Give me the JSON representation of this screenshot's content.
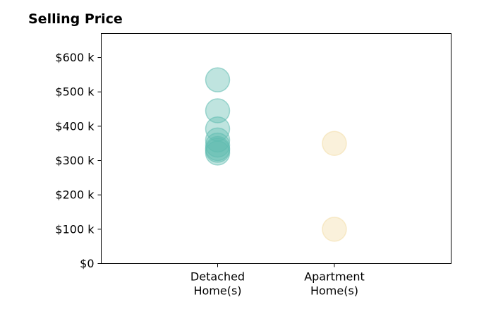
{
  "chart_data": {
    "type": "scatter",
    "title": "Selling Price",
    "xlabel": "",
    "ylabel": "",
    "categories": [
      [
        "Detached",
        "Home(s)"
      ],
      [
        "Apartment",
        "Home(s)"
      ]
    ],
    "ylim": [
      0,
      670
    ],
    "yticks": [
      0,
      100,
      200,
      300,
      400,
      500,
      600
    ],
    "ytick_labels": [
      "$0",
      "$100 k",
      "$200 k",
      "$300 k",
      "$400 k",
      "$500 k",
      "$600 k"
    ],
    "grid": false,
    "series": [
      {
        "category": 0,
        "color": "#5fbcb0",
        "values": [
          535,
          445,
          392,
          360,
          345,
          335,
          330,
          322
        ]
      },
      {
        "category": 1,
        "color": "#f2dca6",
        "values": [
          350,
          100
        ]
      }
    ]
  }
}
